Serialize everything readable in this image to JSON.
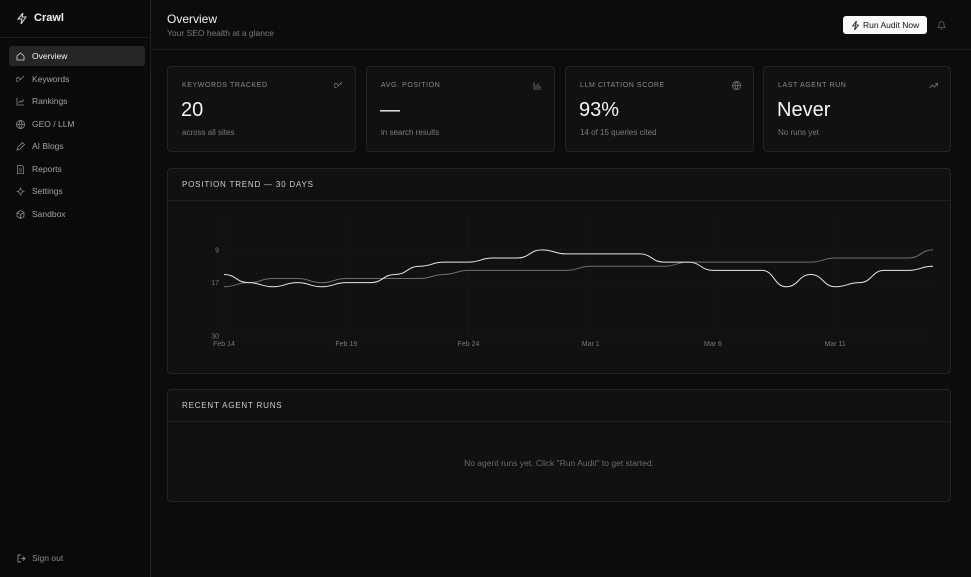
{
  "sidebar": {
    "brand": "Crawl",
    "nav": [
      "Overview",
      "Keywords",
      "Rankings",
      "GEO / LLM",
      "AI Blogs",
      "Reports",
      "Settings",
      "Sandbox"
    ],
    "active": 0,
    "sign_out": "Sign out"
  },
  "header": {
    "title": "Overview",
    "subtitle": "Your SEO health at a glance",
    "button": "Run Audit Now"
  },
  "stats": [
    {
      "label": "KEYWORDS TRACKED",
      "value": "20",
      "note": "across all sites"
    },
    {
      "label": "AVG. POSITION",
      "value": "—",
      "note": "in search results"
    },
    {
      "label": "LLM CITATION SCORE",
      "value": "93%",
      "note": "14 of 15 queries cited"
    },
    {
      "label": "LAST AGENT RUN",
      "value": "Never",
      "note": "No runs yet"
    }
  ],
  "chart_data": {
    "type": "line",
    "title": "POSITION TREND — 30 DAYS",
    "categories": [
      "Feb 14",
      null,
      null,
      null,
      null,
      "Feb 19",
      null,
      null,
      null,
      null,
      "Feb 24",
      null,
      null,
      null,
      null,
      "Mar 1",
      null,
      null,
      null,
      null,
      "Mar 6",
      null,
      null,
      null,
      null,
      "Mar 11",
      null,
      null,
      null,
      null
    ],
    "series": [
      {
        "color": "#e8e8e8",
        "values": [
          15,
          17,
          18,
          17,
          18,
          17,
          17,
          15,
          13,
          12,
          12,
          11,
          11,
          9,
          10,
          10,
          10,
          10,
          12,
          12,
          14,
          14,
          14,
          18,
          15,
          18,
          17,
          14,
          14,
          13
        ]
      },
      {
        "color": "#6e6e6e",
        "values": [
          18,
          17,
          16,
          16,
          17,
          16,
          16,
          16,
          16,
          15,
          14,
          14,
          14,
          14,
          14,
          13,
          13,
          13,
          13,
          12,
          12,
          12,
          12,
          12,
          12,
          11,
          11,
          11,
          11,
          9
        ]
      }
    ],
    "ylim": [
      1,
      30
    ],
    "yticks": [
      9,
      17,
      30
    ],
    "y_reversed": true,
    "grid": true
  },
  "recent": {
    "title": "RECENT AGENT RUNS",
    "empty": "No agent runs yet. Click \"Run Audit\" to get started."
  }
}
